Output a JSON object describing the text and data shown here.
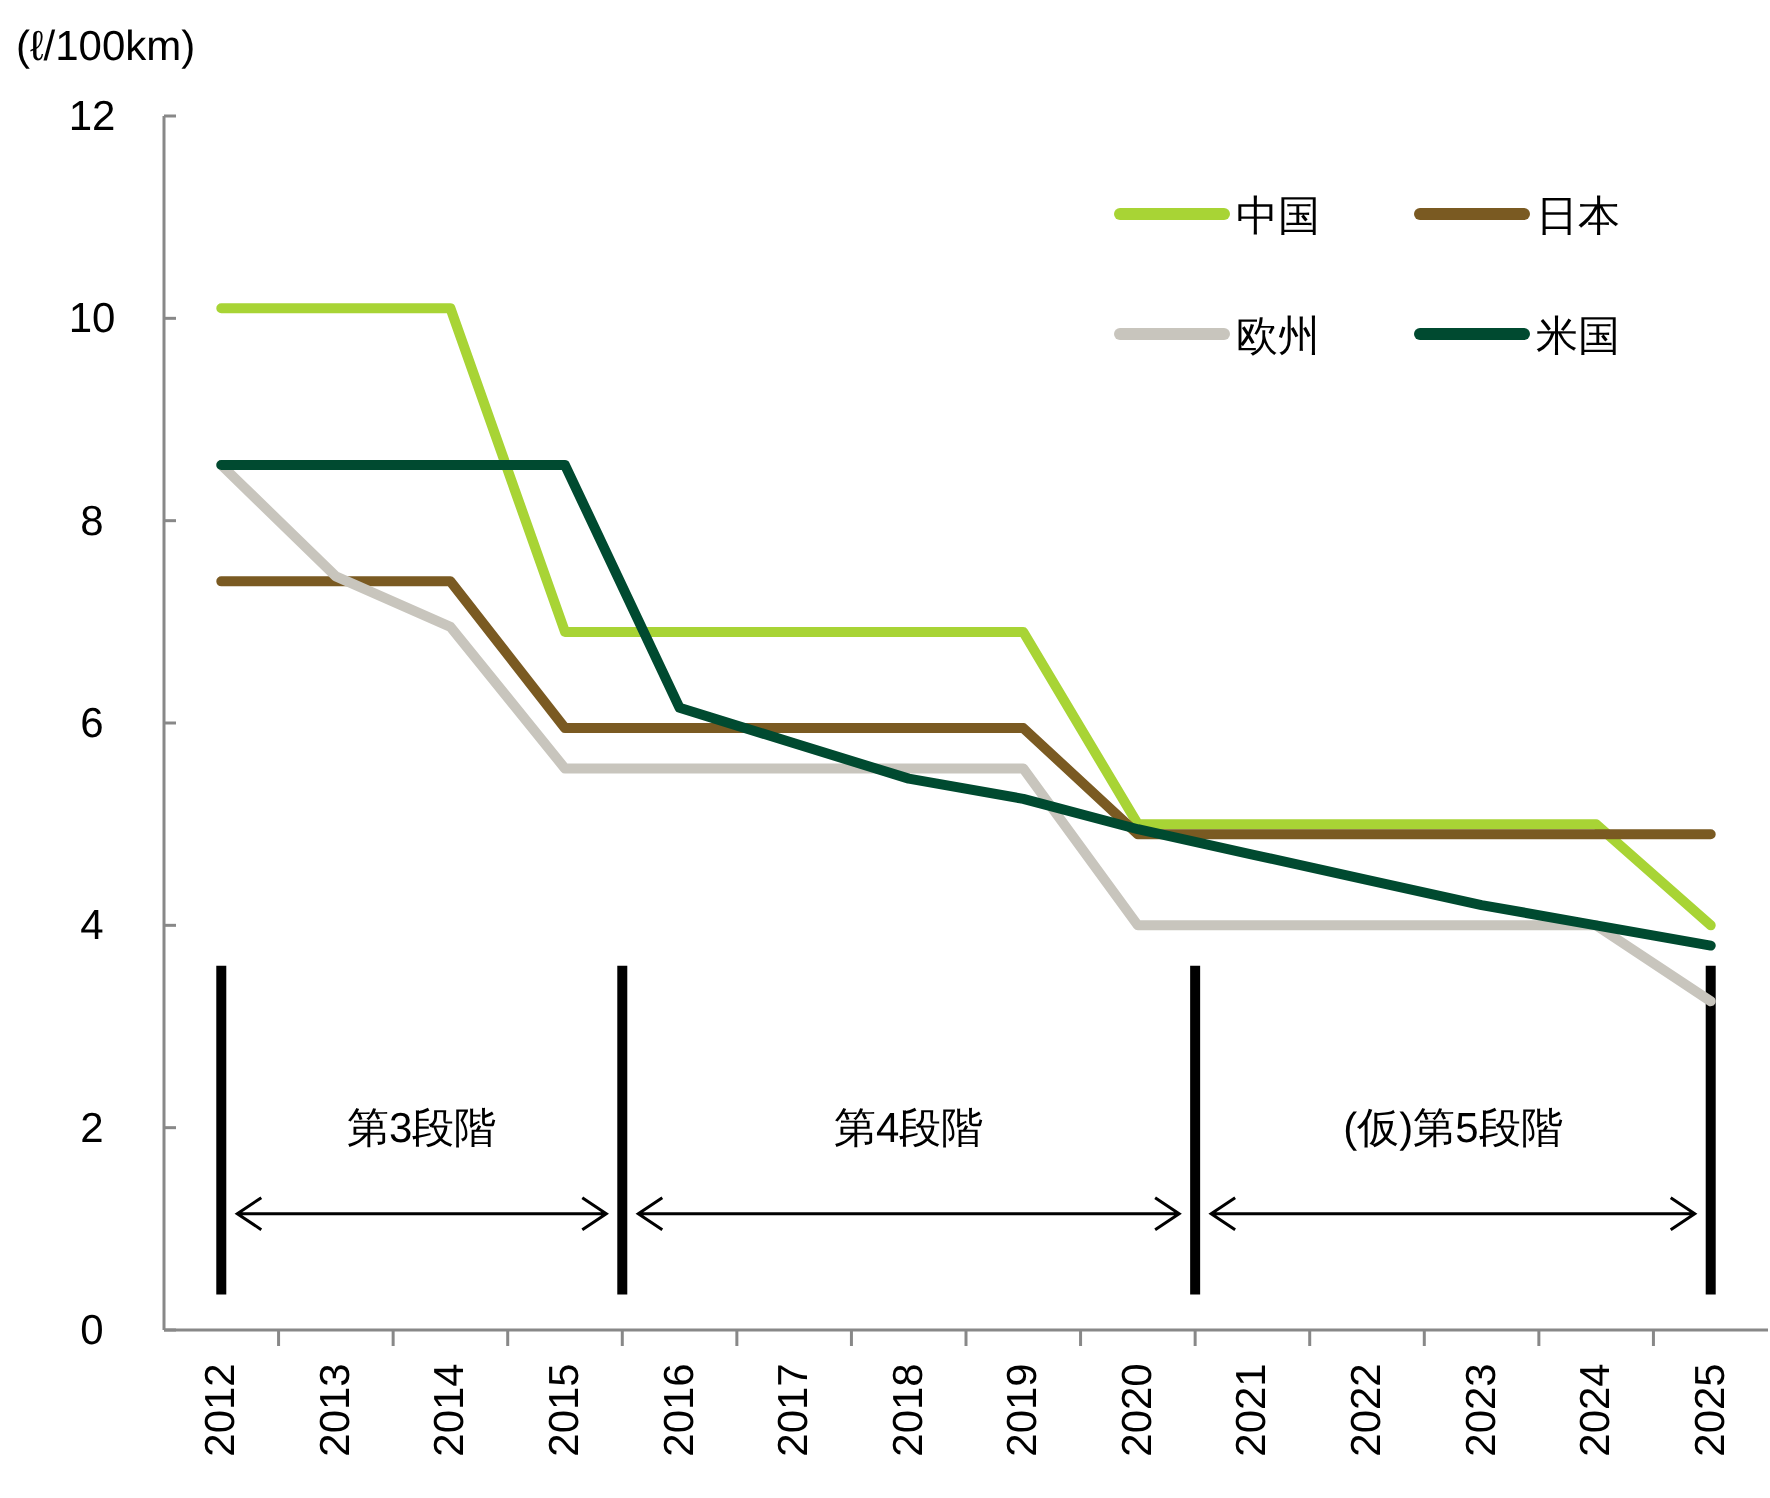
{
  "chart_data": {
    "type": "line",
    "ylabel": "(ℓ/100km)",
    "x": [
      2012,
      2013,
      2014,
      2015,
      2016,
      2017,
      2018,
      2019,
      2020,
      2021,
      2022,
      2023,
      2024,
      2025
    ],
    "xlim": [
      2011.5,
      2025.5
    ],
    "xticks": [
      2012,
      2013,
      2014,
      2015,
      2016,
      2017,
      2018,
      2019,
      2020,
      2021,
      2022,
      2023,
      2024,
      2025
    ],
    "ylim": [
      0,
      12
    ],
    "yticks": [
      0,
      2,
      4,
      6,
      8,
      10,
      12
    ],
    "series": [
      {
        "name": "中国",
        "color": "#a8d435",
        "values": [
          10.1,
          10.1,
          10.1,
          6.9,
          6.9,
          6.9,
          6.9,
          6.9,
          5.0,
          5.0,
          5.0,
          5.0,
          5.0,
          4.0
        ]
      },
      {
        "name": "日本",
        "color": "#7a5a22",
        "values": [
          7.4,
          7.4,
          7.4,
          5.95,
          5.95,
          5.95,
          5.95,
          5.95,
          4.9,
          4.9,
          4.9,
          4.9,
          4.9,
          4.9
        ]
      },
      {
        "name": "欧州",
        "color": "#c8c5bd",
        "values": [
          8.55,
          7.45,
          6.95,
          5.55,
          5.55,
          5.55,
          5.55,
          5.55,
          4.0,
          4.0,
          4.0,
          4.0,
          4.0,
          3.25
        ]
      },
      {
        "name": "米国",
        "color": "#004a30",
        "values": [
          8.55,
          8.55,
          8.55,
          8.55,
          6.15,
          5.8,
          5.45,
          5.25,
          4.95,
          4.7,
          4.45,
          4.2,
          4.0,
          3.8
        ]
      }
    ],
    "ref_lines": [
      {
        "axis": "x",
        "value": 2012,
        "color": "#000000"
      },
      {
        "axis": "x",
        "value": 2015.5,
        "color": "#000000"
      },
      {
        "axis": "x",
        "value": 2020.5,
        "color": "#000000"
      },
      {
        "axis": "x",
        "value": 2025,
        "color": "#000000"
      }
    ],
    "annotations": [
      "第3段階",
      "第4段階",
      "(仮)第5段階"
    ],
    "grid": false,
    "legend": "top right",
    "marker": "none",
    "line_style": "solid"
  }
}
